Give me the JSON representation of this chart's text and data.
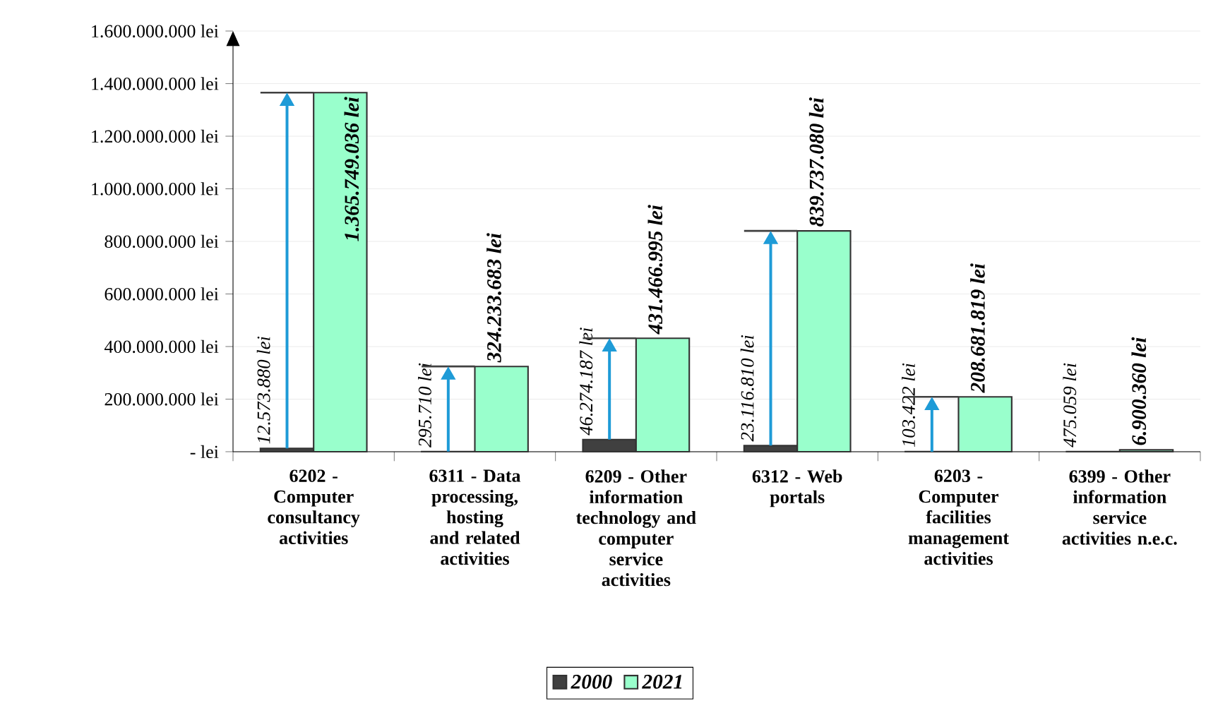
{
  "chart_data": {
    "type": "bar",
    "categories": [
      "6202 - Computer consultancy activities",
      "6311 - Data processing, hosting and related activities",
      "6209 - Other information technology and computer service activities",
      "6312 - Web portals",
      "6203 - Computer facilities management activities",
      "6399 - Other information service activities n.e.c."
    ],
    "series": [
      {
        "name": "2000",
        "color": "#404040",
        "values": [
          12573880,
          295710,
          46274187,
          23116810,
          103422,
          475059
        ],
        "value_labels": [
          "12.573.880 lei",
          "295.710 lei",
          "46.274.187 lei",
          "23.116.810 lei",
          "103.422 lei",
          "475.059 lei"
        ]
      },
      {
        "name": "2021",
        "color": "#99ffcc",
        "values": [
          1365749036,
          324233683,
          431466995,
          839737080,
          208681819,
          6900360
        ],
        "value_labels": [
          "1.365.749.036 lei",
          "324.233.683 lei",
          "431.466.995 lei",
          "839.737.080 lei",
          "208.681.819 lei",
          "6.900.360 lei"
        ]
      }
    ],
    "ylim": [
      0,
      1600000000
    ],
    "yticks": [
      {
        "value": 0,
        "label": "- lei"
      },
      {
        "value": 200000000,
        "label": "200.000.000 lei"
      },
      {
        "value": 400000000,
        "label": "400.000.000 lei"
      },
      {
        "value": 600000000,
        "label": "600.000.000 lei"
      },
      {
        "value": 800000000,
        "label": "800.000.000 lei"
      },
      {
        "value": 1000000000,
        "label": "1.000.000.000 lei"
      },
      {
        "value": 1200000000,
        "label": "1.200.000.000 lei"
      },
      {
        "value": 1400000000,
        "label": "1.400.000.000 lei"
      },
      {
        "value": 1600000000,
        "label": "1.600.000.000 lei"
      }
    ],
    "grid": "y",
    "legend": "bottom"
  }
}
